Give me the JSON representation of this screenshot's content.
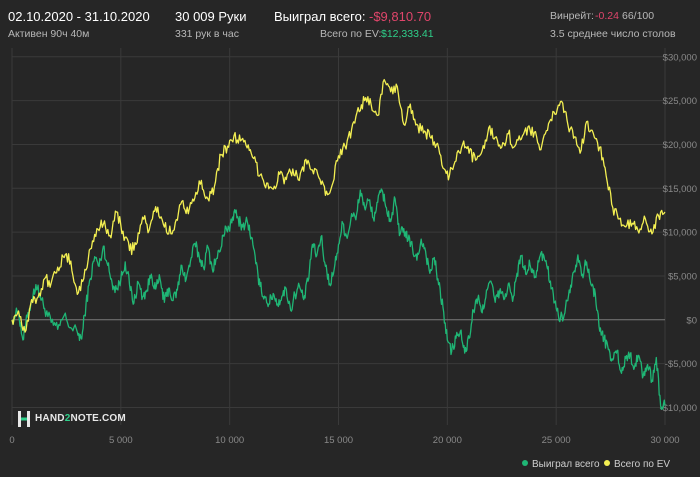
{
  "header": {
    "date_range": "02.10.2020 - 31.10.2020",
    "active_time": "Активен 90ч 40м",
    "hands": "30 009 Руки",
    "hands_per_hour": "331 рук в час",
    "won_label": "Выиграл всего:",
    "won_value": "-$9,810.70",
    "ev_label": "Всего по EV:",
    "ev_value": "$12,333.41",
    "winrate_label": "Винрейт:",
    "winrate_value": "-0.24",
    "winrate_suffix": "66/100",
    "avg_tables": "3.5 среднее число столов"
  },
  "logo": {
    "prefix": "HAND",
    "digit": "2",
    "suffix": "NOTE.COM"
  },
  "colors": {
    "background": "#262626",
    "won_series": "#1fb675",
    "ev_series": "#f3ef52",
    "negative": "#e0456b",
    "positive": "#2fcf8a",
    "grid": "#3a3a3a",
    "zero_line": "#7a7a7a"
  },
  "chart_data": {
    "type": "line",
    "xlim": [
      0,
      30000
    ],
    "ylim": [
      -12000,
      31000
    ],
    "x_ticks": [
      0,
      5000,
      10000,
      15000,
      20000,
      25000,
      30000
    ],
    "x_tick_labels": [
      "0",
      "5 000",
      "10 000",
      "15 000",
      "20 000",
      "25 000",
      "30 000"
    ],
    "y_ticks": [
      -10000,
      -5000,
      0,
      5000,
      10000,
      15000,
      20000,
      25000,
      30000
    ],
    "y_tick_labels": [
      "-$10,000",
      "-$5,000",
      "$0",
      "$5,000",
      "$10,000",
      "$15,000",
      "$20,000",
      "$25,000",
      "$30,000"
    ],
    "grid": true,
    "legend_position": "bottom-right",
    "series": [
      {
        "name": "Выиграл всего",
        "color": "#1fb675",
        "points": [
          [
            0,
            0
          ],
          [
            300,
            1000
          ],
          [
            500,
            -2300
          ],
          [
            700,
            300
          ],
          [
            900,
            2200
          ],
          [
            1100,
            4000
          ],
          [
            1300,
            2700
          ],
          [
            1500,
            1300
          ],
          [
            1800,
            -300
          ],
          [
            2100,
            -1100
          ],
          [
            2400,
            500
          ],
          [
            2700,
            -900
          ],
          [
            3000,
            -1400
          ],
          [
            3200,
            -2200
          ],
          [
            3400,
            1800
          ],
          [
            3600,
            4700
          ],
          [
            3800,
            7200
          ],
          [
            4000,
            6100
          ],
          [
            4200,
            8400
          ],
          [
            4400,
            6200
          ],
          [
            4600,
            4200
          ],
          [
            4800,
            3500
          ],
          [
            5000,
            4600
          ],
          [
            5200,
            6600
          ],
          [
            5400,
            4000
          ],
          [
            5600,
            1900
          ],
          [
            5800,
            4300
          ],
          [
            6000,
            2600
          ],
          [
            6200,
            3400
          ],
          [
            6400,
            5200
          ],
          [
            6600,
            3500
          ],
          [
            6800,
            4700
          ],
          [
            7000,
            2000
          ],
          [
            7200,
            3600
          ],
          [
            7400,
            2200
          ],
          [
            7600,
            3400
          ],
          [
            7800,
            6200
          ],
          [
            8000,
            4600
          ],
          [
            8200,
            6700
          ],
          [
            8400,
            8700
          ],
          [
            8600,
            7200
          ],
          [
            8800,
            6000
          ],
          [
            9000,
            8300
          ],
          [
            9200,
            5800
          ],
          [
            9400,
            7000
          ],
          [
            9600,
            8200
          ],
          [
            9800,
            10700
          ],
          [
            10000,
            10100
          ],
          [
            10200,
            12300
          ],
          [
            10400,
            11500
          ],
          [
            10600,
            10600
          ],
          [
            10800,
            11300
          ],
          [
            11000,
            9400
          ],
          [
            11200,
            6400
          ],
          [
            11400,
            3800
          ],
          [
            11600,
            2700
          ],
          [
            11800,
            1800
          ],
          [
            12000,
            3000
          ],
          [
            12200,
            1800
          ],
          [
            12400,
            2700
          ],
          [
            12600,
            3500
          ],
          [
            12800,
            1100
          ],
          [
            13000,
            2900
          ],
          [
            13200,
            3900
          ],
          [
            13400,
            2300
          ],
          [
            13600,
            4400
          ],
          [
            13800,
            8600
          ],
          [
            14000,
            7300
          ],
          [
            14200,
            9500
          ],
          [
            14400,
            6100
          ],
          [
            14600,
            4100
          ],
          [
            14800,
            5700
          ],
          [
            15000,
            8600
          ],
          [
            15200,
            11000
          ],
          [
            15400,
            9300
          ],
          [
            15600,
            12100
          ],
          [
            15800,
            11400
          ],
          [
            16000,
            14800
          ],
          [
            16200,
            12800
          ],
          [
            16400,
            13600
          ],
          [
            16600,
            11600
          ],
          [
            16800,
            13400
          ],
          [
            17000,
            14800
          ],
          [
            17200,
            12800
          ],
          [
            17400,
            11200
          ],
          [
            17600,
            13800
          ],
          [
            17800,
            9600
          ],
          [
            18000,
            10400
          ],
          [
            18200,
            9100
          ],
          [
            18400,
            8200
          ],
          [
            18600,
            6800
          ],
          [
            18800,
            9200
          ],
          [
            19000,
            7800
          ],
          [
            19200,
            5300
          ],
          [
            19400,
            7100
          ],
          [
            19600,
            4000
          ],
          [
            19800,
            1400
          ],
          [
            20000,
            -2300
          ],
          [
            20200,
            -3600
          ],
          [
            20400,
            -2100
          ],
          [
            20600,
            -1300
          ],
          [
            20800,
            -3800
          ],
          [
            21000,
            -2100
          ],
          [
            21200,
            1100
          ],
          [
            21400,
            2400
          ],
          [
            21600,
            800
          ],
          [
            21800,
            3400
          ],
          [
            22000,
            4400
          ],
          [
            22200,
            2000
          ],
          [
            22400,
            3300
          ],
          [
            22600,
            2300
          ],
          [
            22800,
            4100
          ],
          [
            23000,
            2100
          ],
          [
            23200,
            5300
          ],
          [
            23400,
            7300
          ],
          [
            23600,
            5200
          ],
          [
            23800,
            6300
          ],
          [
            24000,
            4800
          ],
          [
            24200,
            6600
          ],
          [
            24400,
            7500
          ],
          [
            24600,
            5800
          ],
          [
            24800,
            3600
          ],
          [
            25000,
            1300
          ],
          [
            25200,
            200
          ],
          [
            25400,
            800
          ],
          [
            25600,
            3400
          ],
          [
            25800,
            5400
          ],
          [
            26000,
            7400
          ],
          [
            26200,
            5200
          ],
          [
            26400,
            6600
          ],
          [
            26600,
            4000
          ],
          [
            26800,
            3000
          ],
          [
            27000,
            -1300
          ],
          [
            27200,
            -2100
          ],
          [
            27400,
            -3400
          ],
          [
            27600,
            -4600
          ],
          [
            27800,
            -3500
          ],
          [
            28000,
            -6100
          ],
          [
            28200,
            -4400
          ],
          [
            28400,
            -3900
          ],
          [
            28600,
            -5400
          ],
          [
            28800,
            -4100
          ],
          [
            29000,
            -6400
          ],
          [
            29200,
            -5100
          ],
          [
            29400,
            -6900
          ],
          [
            29600,
            -4300
          ],
          [
            29800,
            -9800
          ],
          [
            30000,
            -9800
          ]
        ]
      },
      {
        "name": "Всего по EV",
        "color": "#f3ef52",
        "points": [
          [
            0,
            0
          ],
          [
            300,
            1000
          ],
          [
            600,
            -1400
          ],
          [
            900,
            2300
          ],
          [
            1200,
            2600
          ],
          [
            1500,
            4700
          ],
          [
            1800,
            4200
          ],
          [
            2100,
            6000
          ],
          [
            2400,
            7100
          ],
          [
            2700,
            6700
          ],
          [
            3000,
            2900
          ],
          [
            3300,
            4700
          ],
          [
            3600,
            8100
          ],
          [
            3900,
            10400
          ],
          [
            4200,
            10900
          ],
          [
            4500,
            9600
          ],
          [
            4800,
            12300
          ],
          [
            5100,
            10100
          ],
          [
            5400,
            7900
          ],
          [
            5700,
            8600
          ],
          [
            6000,
            11700
          ],
          [
            6300,
            10200
          ],
          [
            6600,
            12900
          ],
          [
            6900,
            11400
          ],
          [
            7200,
            9800
          ],
          [
            7500,
            11100
          ],
          [
            7800,
            13500
          ],
          [
            8100,
            12100
          ],
          [
            8400,
            13900
          ],
          [
            8700,
            15900
          ],
          [
            9000,
            13800
          ],
          [
            9300,
            15200
          ],
          [
            9600,
            18800
          ],
          [
            9900,
            19800
          ],
          [
            10200,
            21000
          ],
          [
            10500,
            20400
          ],
          [
            10800,
            19600
          ],
          [
            11100,
            18400
          ],
          [
            11400,
            16500
          ],
          [
            11700,
            15600
          ],
          [
            12000,
            14900
          ],
          [
            12300,
            16600
          ],
          [
            12600,
            16000
          ],
          [
            12900,
            17200
          ],
          [
            13200,
            15900
          ],
          [
            13500,
            18300
          ],
          [
            13800,
            17100
          ],
          [
            14100,
            16200
          ],
          [
            14400,
            14200
          ],
          [
            14700,
            15300
          ],
          [
            15000,
            18700
          ],
          [
            15300,
            19800
          ],
          [
            15600,
            21700
          ],
          [
            15900,
            24200
          ],
          [
            16200,
            25000
          ],
          [
            16500,
            24500
          ],
          [
            16800,
            23300
          ],
          [
            17100,
            27400
          ],
          [
            17400,
            26000
          ],
          [
            17700,
            26600
          ],
          [
            18000,
            22300
          ],
          [
            18300,
            24600
          ],
          [
            18600,
            22300
          ],
          [
            18900,
            21300
          ],
          [
            19200,
            20900
          ],
          [
            19500,
            20000
          ],
          [
            19800,
            17300
          ],
          [
            20100,
            16500
          ],
          [
            20400,
            18100
          ],
          [
            20700,
            20000
          ],
          [
            21000,
            19000
          ],
          [
            21300,
            18200
          ],
          [
            21600,
            19300
          ],
          [
            21900,
            21900
          ],
          [
            22200,
            20800
          ],
          [
            22500,
            19700
          ],
          [
            22800,
            21200
          ],
          [
            23100,
            19800
          ],
          [
            23400,
            20600
          ],
          [
            23700,
            22000
          ],
          [
            24000,
            21400
          ],
          [
            24300,
            19400
          ],
          [
            24600,
            21600
          ],
          [
            24900,
            23700
          ],
          [
            25200,
            24900
          ],
          [
            25500,
            22800
          ],
          [
            25800,
            20700
          ],
          [
            26100,
            19000
          ],
          [
            26400,
            22600
          ],
          [
            26700,
            21300
          ],
          [
            27000,
            19700
          ],
          [
            27300,
            16400
          ],
          [
            27600,
            12800
          ],
          [
            27900,
            11500
          ],
          [
            28200,
            10600
          ],
          [
            28500,
            11000
          ],
          [
            28800,
            9900
          ],
          [
            29100,
            11500
          ],
          [
            29400,
            9800
          ],
          [
            29700,
            11900
          ],
          [
            30000,
            12300
          ]
        ]
      }
    ]
  }
}
